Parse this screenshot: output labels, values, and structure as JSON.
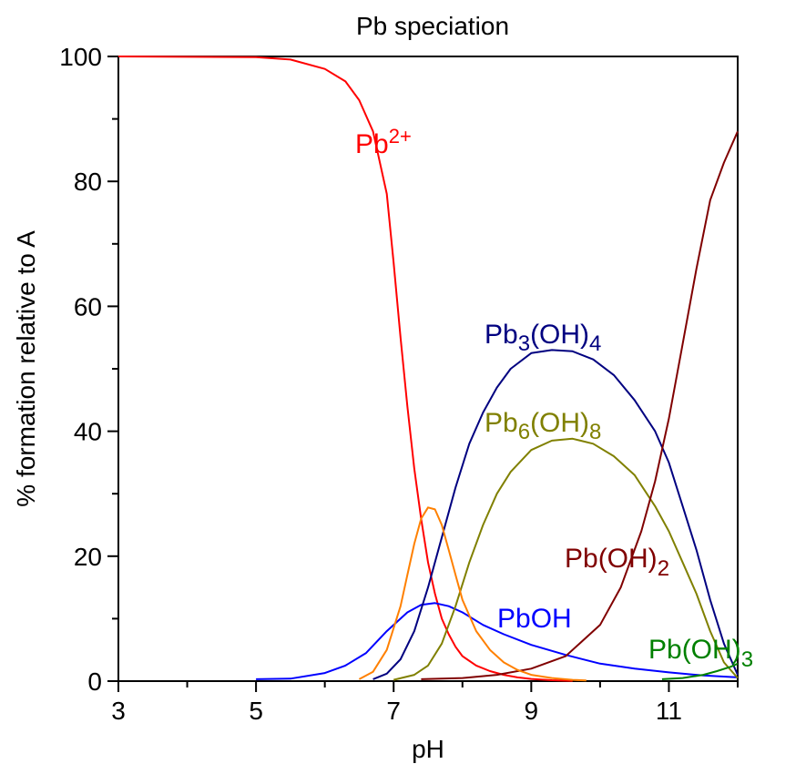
{
  "chart_data": {
    "type": "line",
    "title": "Pb speciation",
    "xlabel": "pH",
    "ylabel": "% formation relative to A",
    "xlim": [
      3,
      12
    ],
    "ylim": [
      0,
      100
    ],
    "x_ticks": [
      3,
      5,
      7,
      9,
      11
    ],
    "y_ticks": [
      0,
      20,
      40,
      60,
      80,
      100
    ],
    "grid": false,
    "legend": "none",
    "series": [
      {
        "name": "Pb2+",
        "label_main": "Pb",
        "label_sup": "2+",
        "color": "#ff0000",
        "x": [
          3,
          5,
          5.5,
          6,
          6.3,
          6.5,
          6.7,
          6.9,
          7.0,
          7.1,
          7.2,
          7.3,
          7.4,
          7.5,
          7.6,
          7.7,
          7.8,
          7.9,
          8.0,
          8.2,
          8.4,
          8.6,
          8.8,
          9.0,
          9.3,
          9.6
        ],
        "y": [
          100,
          99.9,
          99.5,
          98,
          96,
          93,
          88,
          78,
          67,
          55,
          44,
          34,
          26,
          19,
          14,
          10,
          7.5,
          5.5,
          4,
          2.5,
          1.6,
          1,
          0.6,
          0.35,
          0.15,
          0.05
        ]
      },
      {
        "name": "PbOH",
        "label_main": "PbOH",
        "color": "#0000ff",
        "x": [
          5,
          5.5,
          6,
          6.3,
          6.6,
          6.9,
          7.2,
          7.4,
          7.6,
          7.8,
          8.0,
          8.3,
          8.6,
          9.0,
          9.5,
          10,
          10.5,
          11,
          11.5,
          12
        ],
        "y": [
          0.3,
          0.4,
          1.3,
          2.5,
          4.5,
          8,
          11,
          12.2,
          12.5,
          12,
          11,
          9,
          7.5,
          5.8,
          4.2,
          2.8,
          2,
          1.4,
          0.9,
          0.6
        ]
      },
      {
        "name": "Pb3(OH)4",
        "label_main": "Pb",
        "label_sub1": "3",
        "label_mid": "(OH)",
        "label_sub2": "4",
        "color": "#000080",
        "x": [
          6.7,
          6.9,
          7.1,
          7.3,
          7.5,
          7.7,
          7.9,
          8.1,
          8.3,
          8.5,
          8.7,
          9.0,
          9.3,
          9.6,
          9.9,
          10.2,
          10.5,
          10.8,
          11.0,
          11.2,
          11.4,
          11.6,
          11.8,
          12.0
        ],
        "y": [
          0.3,
          1.2,
          3.5,
          8,
          15,
          23,
          31,
          38,
          43,
          47,
          50,
          52.5,
          53,
          52.8,
          51.5,
          49,
          45,
          40,
          35,
          28,
          21,
          13,
          6,
          1
        ]
      },
      {
        "name": "Pb6(OH)8",
        "label_main": "Pb",
        "label_sub1": "6",
        "label_mid": "(OH)",
        "label_sub2": "8",
        "color": "#808000",
        "x": [
          7.0,
          7.3,
          7.5,
          7.7,
          7.9,
          8.1,
          8.3,
          8.5,
          8.7,
          9.0,
          9.3,
          9.6,
          9.9,
          10.2,
          10.5,
          10.8,
          11.0,
          11.2,
          11.4,
          11.6,
          11.8,
          12.0
        ],
        "y": [
          0.2,
          1,
          2.5,
          6,
          12,
          19,
          25,
          30,
          33.5,
          37,
          38.5,
          38.8,
          38,
          36,
          33,
          28,
          24,
          19,
          14,
          8,
          3,
          0.5
        ]
      },
      {
        "name": "Pb(OH)2",
        "label_main": "Pb(OH)",
        "label_sub2": "2",
        "color": "#800000",
        "x": [
          7.4,
          8.0,
          8.5,
          9.0,
          9.5,
          10.0,
          10.3,
          10.6,
          10.8,
          11.0,
          11.2,
          11.4,
          11.6,
          11.8,
          12.0
        ],
        "y": [
          0.3,
          0.5,
          1,
          2,
          4,
          9,
          15,
          24,
          32,
          42,
          54,
          66,
          77,
          83,
          88
        ]
      },
      {
        "name": "Pb(OH)3",
        "label_main": "Pb(OH)",
        "label_sub2": "3",
        "color": "#008000",
        "x": [
          10.9,
          11.2,
          11.5,
          11.7,
          11.9,
          12.0
        ],
        "y": [
          0.3,
          0.5,
          1,
          1.6,
          2.3,
          2.8
        ]
      },
      {
        "name": "orange",
        "color": "#ff8000",
        "x": [
          6.5,
          6.7,
          6.9,
          7.1,
          7.2,
          7.3,
          7.4,
          7.5,
          7.6,
          7.7,
          7.8,
          7.9,
          8.0,
          8.2,
          8.4,
          8.6,
          8.8,
          9.0,
          9.3,
          9.6,
          9.8
        ],
        "y": [
          0.3,
          1.5,
          5,
          12,
          17,
          22,
          26,
          27.8,
          27.5,
          25,
          21,
          17,
          13,
          8,
          5,
          3,
          1.8,
          1,
          0.5,
          0.2,
          0.1
        ]
      }
    ]
  }
}
